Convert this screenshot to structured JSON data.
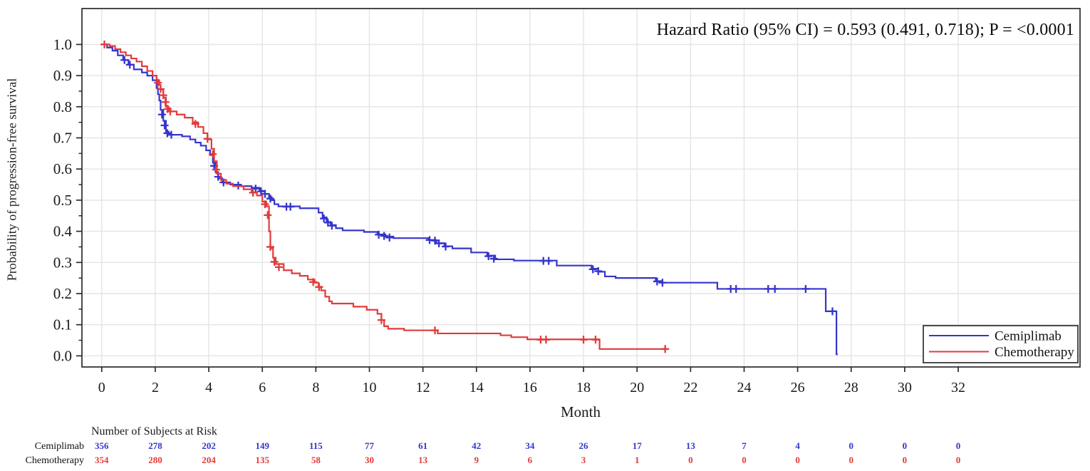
{
  "colors": {
    "cemiplimab": "#3535cd",
    "chemotherapy": "#e13b3b",
    "grid": "#e4e4e4",
    "frame": "#2b2b2b",
    "text": "#1a1a1a"
  },
  "chart_data": {
    "type": "line",
    "subtype": "kaplan-meier-step",
    "title": "Hazard Ratio (95% CI) = 0.593 (0.491, 0.718); P = <0.0001",
    "xlabel": "Month",
    "ylabel": "Probability of progression-free survival",
    "xlim": [
      0,
      32
    ],
    "ylim": [
      0.0,
      1.0
    ],
    "xticks": [
      0,
      2,
      4,
      6,
      8,
      10,
      12,
      14,
      16,
      18,
      20,
      22,
      24,
      26,
      28,
      30,
      32
    ],
    "yticks": [
      0.0,
      0.1,
      0.2,
      0.3,
      0.4,
      0.5,
      0.6,
      0.7,
      0.8,
      0.9,
      1.0
    ],
    "grid": true,
    "legend_position": "inside-bottom-right",
    "series": [
      {
        "name": "Cemiplimab",
        "color": "#3535cd",
        "steps": [
          [
            0,
            1.0
          ],
          [
            0.2,
            0.99
          ],
          [
            0.4,
            0.98
          ],
          [
            0.6,
            0.965
          ],
          [
            0.8,
            0.95
          ],
          [
            1.0,
            0.935
          ],
          [
            1.2,
            0.92
          ],
          [
            1.5,
            0.91
          ],
          [
            1.7,
            0.9
          ],
          [
            1.9,
            0.885
          ],
          [
            2.05,
            0.86
          ],
          [
            2.1,
            0.84
          ],
          [
            2.15,
            0.82
          ],
          [
            2.2,
            0.79
          ],
          [
            2.3,
            0.755
          ],
          [
            2.4,
            0.72
          ],
          [
            2.5,
            0.71
          ],
          [
            3.0,
            0.705
          ],
          [
            3.3,
            0.695
          ],
          [
            3.5,
            0.685
          ],
          [
            3.7,
            0.675
          ],
          [
            3.9,
            0.66
          ],
          [
            4.05,
            0.645
          ],
          [
            4.15,
            0.62
          ],
          [
            4.25,
            0.59
          ],
          [
            4.35,
            0.57
          ],
          [
            4.5,
            0.557
          ],
          [
            4.8,
            0.55
          ],
          [
            5.2,
            0.545
          ],
          [
            5.6,
            0.54
          ],
          [
            5.9,
            0.53
          ],
          [
            6.1,
            0.52
          ],
          [
            6.25,
            0.51
          ],
          [
            6.35,
            0.5
          ],
          [
            6.45,
            0.487
          ],
          [
            6.6,
            0.48
          ],
          [
            7.4,
            0.474
          ],
          [
            8.1,
            0.46
          ],
          [
            8.25,
            0.445
          ],
          [
            8.4,
            0.43
          ],
          [
            8.55,
            0.42
          ],
          [
            8.75,
            0.41
          ],
          [
            9.0,
            0.403
          ],
          [
            9.8,
            0.398
          ],
          [
            10.3,
            0.39
          ],
          [
            10.6,
            0.383
          ],
          [
            10.9,
            0.378
          ],
          [
            12.2,
            0.372
          ],
          [
            12.5,
            0.362
          ],
          [
            12.8,
            0.352
          ],
          [
            13.1,
            0.345
          ],
          [
            13.8,
            0.332
          ],
          [
            14.4,
            0.322
          ],
          [
            14.7,
            0.31
          ],
          [
            15.4,
            0.306
          ],
          [
            17.0,
            0.29
          ],
          [
            18.3,
            0.28
          ],
          [
            18.55,
            0.27
          ],
          [
            18.8,
            0.255
          ],
          [
            19.2,
            0.25
          ],
          [
            20.7,
            0.24
          ],
          [
            20.9,
            0.235
          ],
          [
            23.0,
            0.215
          ],
          [
            27.05,
            0.143
          ],
          [
            27.45,
            0.005
          ]
        ],
        "end_month": 27.5,
        "censors": [
          [
            0.85,
            0.95
          ],
          [
            1.05,
            0.935
          ],
          [
            2.25,
            0.775
          ],
          [
            2.35,
            0.74
          ],
          [
            2.45,
            0.715
          ],
          [
            2.6,
            0.71
          ],
          [
            4.2,
            0.61
          ],
          [
            4.35,
            0.575
          ],
          [
            4.55,
            0.557
          ],
          [
            5.1,
            0.547
          ],
          [
            5.75,
            0.537
          ],
          [
            5.95,
            0.528
          ],
          [
            6.1,
            0.52
          ],
          [
            6.3,
            0.505
          ],
          [
            6.9,
            0.479
          ],
          [
            7.05,
            0.479
          ],
          [
            8.3,
            0.441
          ],
          [
            8.45,
            0.428
          ],
          [
            8.6,
            0.418
          ],
          [
            10.35,
            0.389
          ],
          [
            10.55,
            0.385
          ],
          [
            10.75,
            0.38
          ],
          [
            12.25,
            0.372
          ],
          [
            12.45,
            0.37
          ],
          [
            12.6,
            0.361
          ],
          [
            12.85,
            0.351
          ],
          [
            14.45,
            0.32
          ],
          [
            14.65,
            0.312
          ],
          [
            16.5,
            0.305
          ],
          [
            16.7,
            0.305
          ],
          [
            18.35,
            0.278
          ],
          [
            18.55,
            0.272
          ],
          [
            20.75,
            0.239
          ],
          [
            20.95,
            0.235
          ],
          [
            23.5,
            0.215
          ],
          [
            23.7,
            0.215
          ],
          [
            24.9,
            0.215
          ],
          [
            25.15,
            0.215
          ],
          [
            26.3,
            0.215
          ],
          [
            27.3,
            0.143
          ]
        ]
      },
      {
        "name": "Chemotherapy",
        "color": "#e13b3b",
        "steps": [
          [
            0,
            1.0
          ],
          [
            0.3,
            0.995
          ],
          [
            0.5,
            0.985
          ],
          [
            0.7,
            0.975
          ],
          [
            0.9,
            0.965
          ],
          [
            1.1,
            0.955
          ],
          [
            1.3,
            0.945
          ],
          [
            1.5,
            0.93
          ],
          [
            1.7,
            0.915
          ],
          [
            1.9,
            0.9
          ],
          [
            2.05,
            0.885
          ],
          [
            2.15,
            0.87
          ],
          [
            2.2,
            0.855
          ],
          [
            2.3,
            0.83
          ],
          [
            2.4,
            0.8
          ],
          [
            2.5,
            0.785
          ],
          [
            2.8,
            0.775
          ],
          [
            3.1,
            0.765
          ],
          [
            3.4,
            0.75
          ],
          [
            3.6,
            0.735
          ],
          [
            3.8,
            0.715
          ],
          [
            3.95,
            0.695
          ],
          [
            4.1,
            0.665
          ],
          [
            4.2,
            0.625
          ],
          [
            4.3,
            0.585
          ],
          [
            4.45,
            0.565
          ],
          [
            4.65,
            0.553
          ],
          [
            4.9,
            0.545
          ],
          [
            5.3,
            0.535
          ],
          [
            5.6,
            0.525
          ],
          [
            5.8,
            0.515
          ],
          [
            6.0,
            0.495
          ],
          [
            6.15,
            0.48
          ],
          [
            6.25,
            0.4
          ],
          [
            6.3,
            0.345
          ],
          [
            6.4,
            0.315
          ],
          [
            6.5,
            0.295
          ],
          [
            6.8,
            0.275
          ],
          [
            7.1,
            0.265
          ],
          [
            7.4,
            0.257
          ],
          [
            7.7,
            0.245
          ],
          [
            7.95,
            0.235
          ],
          [
            8.1,
            0.222
          ],
          [
            8.2,
            0.21
          ],
          [
            8.35,
            0.19
          ],
          [
            8.5,
            0.175
          ],
          [
            8.6,
            0.168
          ],
          [
            9.4,
            0.158
          ],
          [
            9.9,
            0.148
          ],
          [
            10.3,
            0.135
          ],
          [
            10.45,
            0.115
          ],
          [
            10.55,
            0.095
          ],
          [
            10.7,
            0.087
          ],
          [
            11.3,
            0.082
          ],
          [
            12.55,
            0.072
          ],
          [
            14.9,
            0.066
          ],
          [
            15.3,
            0.06
          ],
          [
            15.9,
            0.053
          ],
          [
            18.6,
            0.022
          ]
        ],
        "end_month": 21.1,
        "censors": [
          [
            0.1,
            1.0
          ],
          [
            2.1,
            0.877
          ],
          [
            2.2,
            0.857
          ],
          [
            2.3,
            0.837
          ],
          [
            2.38,
            0.815
          ],
          [
            2.46,
            0.793
          ],
          [
            2.56,
            0.785
          ],
          [
            3.5,
            0.745
          ],
          [
            3.95,
            0.697
          ],
          [
            4.15,
            0.648
          ],
          [
            4.27,
            0.598
          ],
          [
            5.65,
            0.524
          ],
          [
            6.1,
            0.487
          ],
          [
            6.2,
            0.452
          ],
          [
            6.3,
            0.35
          ],
          [
            6.45,
            0.302
          ],
          [
            6.62,
            0.285
          ],
          [
            7.9,
            0.237
          ],
          [
            8.12,
            0.221
          ],
          [
            10.45,
            0.115
          ],
          [
            12.45,
            0.082
          ],
          [
            16.4,
            0.052
          ],
          [
            16.6,
            0.052
          ],
          [
            18.0,
            0.052
          ],
          [
            18.45,
            0.052
          ],
          [
            21.05,
            0.022
          ]
        ]
      }
    ]
  },
  "legend": {
    "items": [
      {
        "label": "Cemiplimab",
        "color": "#3535cd"
      },
      {
        "label": "Chemotherapy",
        "color": "#e13b3b"
      }
    ]
  },
  "risk_table": {
    "header": "Number of Subjects at Risk",
    "months": [
      0,
      2,
      4,
      6,
      8,
      10,
      12,
      14,
      16,
      18,
      20,
      22,
      24,
      26,
      28,
      30,
      32
    ],
    "rows": [
      {
        "label": "Cemiplimab",
        "color": "#3535cd",
        "values": [
          356,
          278,
          202,
          149,
          115,
          77,
          61,
          42,
          34,
          26,
          17,
          13,
          7,
          4,
          0,
          0,
          0
        ]
      },
      {
        "label": "Chemotherapy",
        "color": "#e13b3b",
        "values": [
          354,
          280,
          204,
          135,
          58,
          30,
          13,
          9,
          6,
          3,
          1,
          0,
          0,
          0,
          0,
          0,
          0
        ]
      }
    ]
  }
}
